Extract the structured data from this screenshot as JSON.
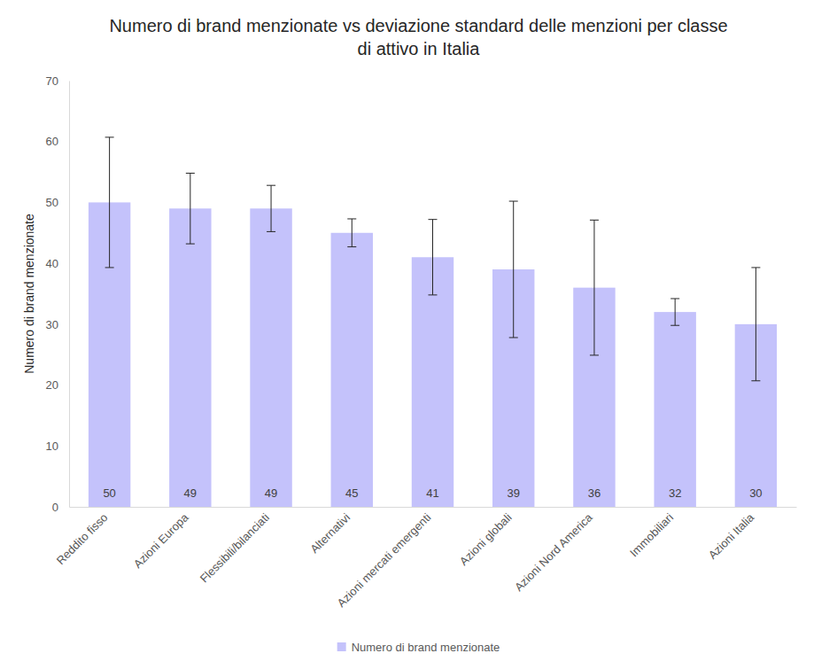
{
  "chart_data": {
    "type": "bar",
    "title": "Numero di brand menzionate vs deviazione standard delle menzioni per classe di attivo in Italia",
    "y_label": "Numero di brand menzionate",
    "categories": [
      "Reddito fisso",
      "Azioni Europa",
      "Flessibili/bilanciati",
      "Alternativi",
      "Azioni mercati emergenti",
      "Azioni globali",
      "Azioni Nord America",
      "Immobiliari",
      "Azioni Italia"
    ],
    "series": [
      {
        "name": "Numero di brand menzionate",
        "color": "#c4c2fb",
        "values": [
          50,
          49,
          49,
          45,
          41,
          39,
          36,
          32,
          30
        ],
        "errors": [
          10.7,
          5.8,
          3.8,
          2.3,
          6.2,
          11.2,
          11.1,
          2.2,
          9.3
        ]
      }
    ],
    "ylim": [
      0,
      70
    ],
    "yticks": [
      0,
      10,
      20,
      30,
      40,
      50,
      60,
      70
    ],
    "grid": false,
    "legend": "bottom",
    "data_labels": true
  }
}
